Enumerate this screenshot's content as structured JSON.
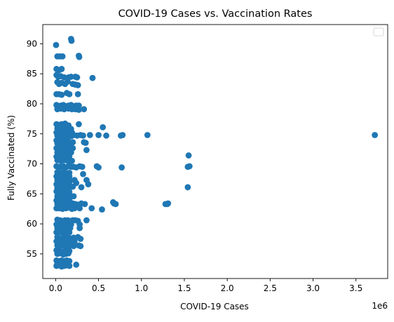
{
  "chart_data": {
    "type": "scatter",
    "title": "COVID-19 Cases vs. Vaccination Rates",
    "xlabel": "COVID-19 Cases",
    "ylabel": "Fully Vaccinated (%)",
    "x_offset_label": "1e6",
    "xlim": [
      -150000,
      3870000
    ],
    "ylim": [
      50.9,
      93.2
    ],
    "x_ticks": [
      0,
      500000,
      1000000,
      1500000,
      2000000,
      2500000,
      3000000,
      3500000
    ],
    "x_tick_labels": [
      "0.0",
      "0.5",
      "1.0",
      "1.5",
      "2.0",
      "2.5",
      "3.0",
      "3.5"
    ],
    "y_ticks": [
      55,
      60,
      65,
      70,
      75,
      80,
      85,
      90
    ],
    "y_tick_labels": [
      "55",
      "60",
      "65",
      "70",
      "75",
      "80",
      "85",
      "90"
    ],
    "grid": false,
    "legend": {
      "position": "upper-right",
      "entries": []
    },
    "series": [
      {
        "color": "#1f77b4",
        "marker": "circle",
        "points": [
          [
            5000,
            89.8
          ],
          [
            180000,
            90.8
          ],
          [
            185000,
            90.5
          ],
          [
            20000,
            87.9
          ],
          [
            50000,
            87.9
          ],
          [
            80000,
            87.9
          ],
          [
            270000,
            88.0
          ],
          [
            275000,
            87.8
          ],
          [
            10000,
            85.8
          ],
          [
            40000,
            85.6
          ],
          [
            70000,
            85.8
          ],
          [
            10000,
            84.8
          ],
          [
            30000,
            84.5
          ],
          [
            60000,
            84.6
          ],
          [
            100000,
            84.4
          ],
          [
            150000,
            84.4
          ],
          [
            180000,
            84.5
          ],
          [
            230000,
            84.5
          ],
          [
            250000,
            84.4
          ],
          [
            430000,
            84.3
          ],
          [
            20000,
            83.6
          ],
          [
            40000,
            83.3
          ],
          [
            70000,
            83.5
          ],
          [
            110000,
            83.3
          ],
          [
            140000,
            83.7
          ],
          [
            200000,
            83.3
          ],
          [
            230000,
            83.2
          ],
          [
            260000,
            83.1
          ],
          [
            10000,
            81.6
          ],
          [
            40000,
            81.6
          ],
          [
            70000,
            81.5
          ],
          [
            130000,
            81.8
          ],
          [
            160000,
            81.6
          ],
          [
            260000,
            81.6
          ],
          [
            10000,
            79.8
          ],
          [
            30000,
            79.6
          ],
          [
            60000,
            79.7
          ],
          [
            90000,
            79.8
          ],
          [
            120000,
            79.6
          ],
          [
            150000,
            79.7
          ],
          [
            180000,
            79.8
          ],
          [
            210000,
            79.6
          ],
          [
            240000,
            79.7
          ],
          [
            270000,
            79.7
          ],
          [
            20000,
            79.1
          ],
          [
            60000,
            79.2
          ],
          [
            100000,
            79.1
          ],
          [
            150000,
            79.2
          ],
          [
            190000,
            79.1
          ],
          [
            230000,
            79.1
          ],
          [
            270000,
            79.0
          ],
          [
            330000,
            79.1
          ],
          [
            10000,
            76.6
          ],
          [
            40000,
            76.5
          ],
          [
            70000,
            76.6
          ],
          [
            110000,
            76.7
          ],
          [
            150000,
            76.4
          ],
          [
            270000,
            76.6
          ],
          [
            20000,
            75.9
          ],
          [
            60000,
            76.0
          ],
          [
            100000,
            75.9
          ],
          [
            140000,
            76.0
          ],
          [
            180000,
            75.8
          ],
          [
            550000,
            76.1
          ],
          [
            10000,
            75.2
          ],
          [
            30000,
            75.1
          ],
          [
            50000,
            75.3
          ],
          [
            80000,
            75.0
          ],
          [
            110000,
            75.2
          ],
          [
            130000,
            75.1
          ],
          [
            160000,
            75.0
          ],
          [
            190000,
            75.2
          ],
          [
            20000,
            74.7
          ],
          [
            50000,
            74.8
          ],
          [
            70000,
            74.6
          ],
          [
            90000,
            74.8
          ],
          [
            120000,
            74.7
          ],
          [
            150000,
            74.8
          ],
          [
            180000,
            74.6
          ],
          [
            210000,
            74.8
          ],
          [
            250000,
            74.7
          ],
          [
            290000,
            74.8
          ],
          [
            320000,
            74.7
          ],
          [
            400000,
            74.8
          ],
          [
            500000,
            74.8
          ],
          [
            590000,
            74.7
          ],
          [
            760000,
            74.7
          ],
          [
            780000,
            74.8
          ],
          [
            1070000,
            74.8
          ],
          [
            3720000,
            74.8
          ],
          [
            10000,
            73.9
          ],
          [
            40000,
            74.0
          ],
          [
            70000,
            73.8
          ],
          [
            100000,
            74.0
          ],
          [
            140000,
            73.9
          ],
          [
            20000,
            73.4
          ],
          [
            50000,
            73.3
          ],
          [
            80000,
            73.5
          ],
          [
            110000,
            73.3
          ],
          [
            140000,
            73.4
          ],
          [
            170000,
            73.4
          ],
          [
            200000,
            73.6
          ],
          [
            330000,
            73.6
          ],
          [
            350000,
            73.5
          ],
          [
            10000,
            72.6
          ],
          [
            40000,
            72.7
          ],
          [
            80000,
            72.5
          ],
          [
            120000,
            72.6
          ],
          [
            170000,
            72.6
          ],
          [
            200000,
            72.6
          ],
          [
            360000,
            72.3
          ],
          [
            20000,
            71.9
          ],
          [
            60000,
            72.0
          ],
          [
            100000,
            71.8
          ],
          [
            140000,
            71.9
          ],
          [
            180000,
            71.9
          ],
          [
            10000,
            71.2
          ],
          [
            40000,
            71.3
          ],
          [
            80000,
            71.2
          ],
          [
            120000,
            71.3
          ],
          [
            160000,
            71.3
          ],
          [
            1550000,
            71.4
          ],
          [
            20000,
            70.6
          ],
          [
            60000,
            70.5
          ],
          [
            100000,
            70.6
          ],
          [
            150000,
            70.4
          ],
          [
            190000,
            70.5
          ],
          [
            10000,
            69.6
          ],
          [
            30000,
            69.5
          ],
          [
            60000,
            69.5
          ],
          [
            90000,
            69.6
          ],
          [
            120000,
            69.4
          ],
          [
            150000,
            69.6
          ],
          [
            180000,
            69.5
          ],
          [
            210000,
            69.5
          ],
          [
            240000,
            69.4
          ],
          [
            280000,
            69.6
          ],
          [
            310000,
            69.5
          ],
          [
            480000,
            69.6
          ],
          [
            500000,
            69.4
          ],
          [
            770000,
            69.4
          ],
          [
            1540000,
            69.5
          ],
          [
            1560000,
            69.6
          ],
          [
            20000,
            68.6
          ],
          [
            50000,
            68.5
          ],
          [
            90000,
            68.6
          ],
          [
            130000,
            68.4
          ],
          [
            160000,
            68.5
          ],
          [
            320000,
            68.3
          ],
          [
            10000,
            67.9
          ],
          [
            40000,
            67.8
          ],
          [
            80000,
            67.9
          ],
          [
            120000,
            67.8
          ],
          [
            160000,
            67.9
          ],
          [
            20000,
            67.3
          ],
          [
            50000,
            67.2
          ],
          [
            90000,
            67.3
          ],
          [
            130000,
            67.4
          ],
          [
            170000,
            67.2
          ],
          [
            220000,
            67.3
          ],
          [
            360000,
            67.3
          ],
          [
            10000,
            66.6
          ],
          [
            40000,
            66.5
          ],
          [
            80000,
            66.6
          ],
          [
            120000,
            66.6
          ],
          [
            160000,
            66.5
          ],
          [
            240000,
            66.8
          ],
          [
            380000,
            66.6
          ],
          [
            20000,
            66.0
          ],
          [
            50000,
            66.1
          ],
          [
            90000,
            65.9
          ],
          [
            130000,
            66.0
          ],
          [
            170000,
            66.1
          ],
          [
            200000,
            66.2
          ],
          [
            300000,
            66.1
          ],
          [
            1540000,
            66.1
          ],
          [
            10000,
            65.4
          ],
          [
            40000,
            65.3
          ],
          [
            80000,
            65.3
          ],
          [
            120000,
            65.4
          ],
          [
            160000,
            65.3
          ],
          [
            20000,
            64.6
          ],
          [
            50000,
            64.7
          ],
          [
            90000,
            64.6
          ],
          [
            130000,
            64.7
          ],
          [
            170000,
            64.5
          ],
          [
            210000,
            64.6
          ],
          [
            10000,
            63.9
          ],
          [
            40000,
            63.9
          ],
          [
            80000,
            63.8
          ],
          [
            120000,
            63.9
          ],
          [
            160000,
            64.0
          ],
          [
            20000,
            63.3
          ],
          [
            50000,
            63.4
          ],
          [
            80000,
            63.2
          ],
          [
            110000,
            63.3
          ],
          [
            140000,
            63.4
          ],
          [
            170000,
            63.2
          ],
          [
            200000,
            63.4
          ],
          [
            230000,
            63.3
          ],
          [
            260000,
            63.2
          ],
          [
            300000,
            63.4
          ],
          [
            340000,
            63.3
          ],
          [
            670000,
            63.6
          ],
          [
            680000,
            63.4
          ],
          [
            700000,
            63.3
          ],
          [
            1280000,
            63.3
          ],
          [
            1300000,
            63.3
          ],
          [
            1310000,
            63.4
          ],
          [
            10000,
            62.6
          ],
          [
            40000,
            62.6
          ],
          [
            80000,
            62.5
          ],
          [
            120000,
            62.6
          ],
          [
            160000,
            62.7
          ],
          [
            190000,
            62.5
          ],
          [
            220000,
            62.6
          ],
          [
            280000,
            62.6
          ],
          [
            420000,
            62.6
          ],
          [
            540000,
            62.4
          ],
          [
            20000,
            60.7
          ],
          [
            50000,
            60.6
          ],
          [
            80000,
            60.5
          ],
          [
            110000,
            60.6
          ],
          [
            140000,
            60.6
          ],
          [
            170000,
            60.5
          ],
          [
            200000,
            60.6
          ],
          [
            230000,
            60.6
          ],
          [
            260000,
            60.5
          ],
          [
            360000,
            60.6
          ],
          [
            10000,
            59.9
          ],
          [
            40000,
            59.9
          ],
          [
            70000,
            59.8
          ],
          [
            110000,
            59.9
          ],
          [
            150000,
            59.8
          ],
          [
            180000,
            59.9
          ],
          [
            280000,
            59.9
          ],
          [
            20000,
            59.3
          ],
          [
            50000,
            59.3
          ],
          [
            90000,
            59.3
          ],
          [
            130000,
            59.2
          ],
          [
            170000,
            59.3
          ],
          [
            280000,
            59.3
          ],
          [
            10000,
            58.6
          ],
          [
            40000,
            58.6
          ],
          [
            80000,
            58.6
          ],
          [
            120000,
            58.5
          ],
          [
            160000,
            58.6
          ],
          [
            20000,
            57.8
          ],
          [
            50000,
            57.6
          ],
          [
            90000,
            57.8
          ],
          [
            130000,
            57.7
          ],
          [
            170000,
            57.6
          ],
          [
            210000,
            57.7
          ],
          [
            260000,
            57.8
          ],
          [
            290000,
            57.5
          ],
          [
            10000,
            57.1
          ],
          [
            40000,
            57.0
          ],
          [
            80000,
            57.1
          ],
          [
            120000,
            57.2
          ],
          [
            160000,
            57.0
          ],
          [
            220000,
            57.1
          ],
          [
            20000,
            56.4
          ],
          [
            50000,
            56.3
          ],
          [
            90000,
            56.4
          ],
          [
            130000,
            56.3
          ],
          [
            170000,
            56.4
          ],
          [
            210000,
            56.3
          ],
          [
            270000,
            56.4
          ],
          [
            290000,
            56.3
          ],
          [
            10000,
            55.6
          ],
          [
            40000,
            55.5
          ],
          [
            80000,
            55.4
          ],
          [
            120000,
            55.6
          ],
          [
            160000,
            55.5
          ],
          [
            20000,
            55.0
          ],
          [
            50000,
            55.1
          ],
          [
            90000,
            54.9
          ],
          [
            120000,
            55.0
          ],
          [
            150000,
            55.1
          ],
          [
            10000,
            53.9
          ],
          [
            40000,
            53.8
          ],
          [
            70000,
            53.9
          ],
          [
            100000,
            53.8
          ],
          [
            130000,
            53.9
          ],
          [
            160000,
            53.8
          ],
          [
            20000,
            53.3
          ],
          [
            50000,
            53.2
          ],
          [
            80000,
            53.3
          ],
          [
            110000,
            53.3
          ],
          [
            140000,
            53.4
          ],
          [
            10000,
            53.0
          ],
          [
            40000,
            53.1
          ],
          [
            70000,
            52.9
          ],
          [
            100000,
            53.0
          ],
          [
            130000,
            53.1
          ],
          [
            160000,
            53.0
          ],
          [
            240000,
            53.2
          ]
        ]
      }
    ]
  }
}
